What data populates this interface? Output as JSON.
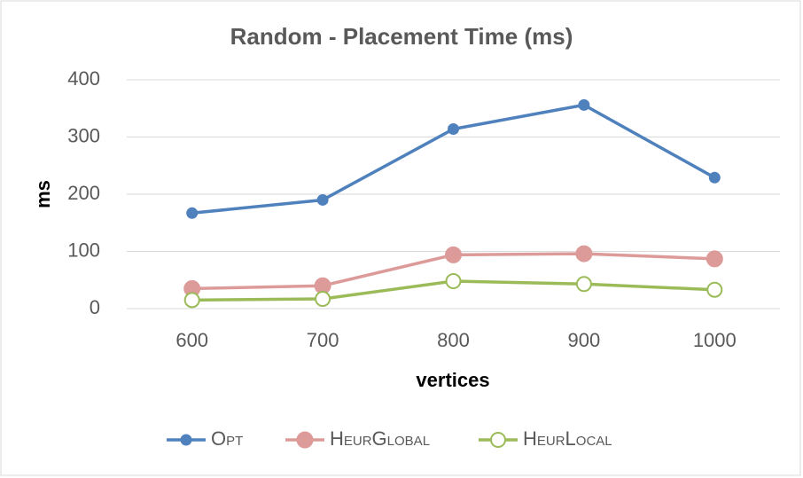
{
  "chart_data": {
    "type": "line",
    "title": "Random - Placement Time (ms)",
    "x_label": "vertices",
    "y_label": "ms",
    "categories": [
      "600",
      "700",
      "800",
      "900",
      "1000"
    ],
    "series": [
      {
        "name": "Opt",
        "color": "#4f81bd",
        "marker": "circle",
        "values": [
          167,
          190,
          314,
          356,
          229
        ]
      },
      {
        "name": "HeurGlobal",
        "color": "#dc9a99",
        "marker": "circle",
        "values": [
          35,
          40,
          94,
          96,
          87
        ]
      },
      {
        "name": "HeurLocal",
        "color": "#9bbb59",
        "marker": "circle-open",
        "values": [
          15,
          17,
          48,
          43,
          33
        ]
      }
    ],
    "ylim": [
      0,
      400
    ],
    "yticks": [
      0,
      100,
      200,
      300,
      400
    ],
    "grid": true,
    "legend": "bottom"
  }
}
